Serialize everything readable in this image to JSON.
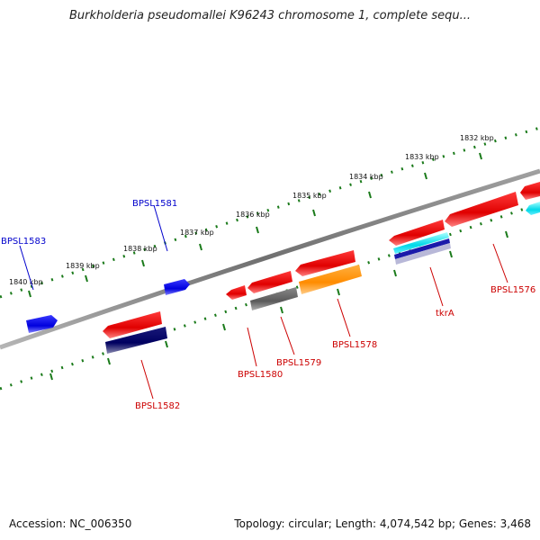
{
  "header": {
    "title": "Burkholderia pseudomallei K96243 chromosome 1, complete sequ..."
  },
  "footer": {
    "accession": "Accession: NC_006350",
    "summary": "Topology: circular; Length: 4,074,542 bp; Genes: 3,468"
  },
  "scale": {
    "unit": "kbp",
    "ticks": [
      {
        "label": "1832 kbp"
      },
      {
        "label": "1833 kbp"
      },
      {
        "label": "1834 kbp"
      },
      {
        "label": "1835 kbp"
      },
      {
        "label": "1836 kbp"
      },
      {
        "label": "1837 kbp"
      },
      {
        "label": "1838 kbp"
      },
      {
        "label": "1839 kbp"
      },
      {
        "label": "1840 kbp"
      }
    ]
  },
  "genes": [
    {
      "name": "BPSL1583",
      "strand": "forward",
      "color": "#0000ee"
    },
    {
      "name": "BPSL1581",
      "strand": "forward",
      "color": "#0000ee"
    },
    {
      "name": "BPSL1582",
      "strand": "reverse",
      "color": "#cc0000"
    },
    {
      "name": "BPSL1580",
      "strand": "reverse",
      "color": "#cc0000"
    },
    {
      "name": "BPSL1579",
      "strand": "reverse",
      "color": "#cc0000"
    },
    {
      "name": "BPSL1578",
      "strand": "reverse",
      "color": "#cc0000"
    },
    {
      "name": "tkrA",
      "strand": "reverse",
      "color": "#cc0000"
    },
    {
      "name": "BPSL1576",
      "strand": "reverse",
      "color": "#cc0000"
    }
  ],
  "colors": {
    "backbone": "#808080",
    "tick_dots": "#1a7a1a",
    "forward_label": "#0000cc",
    "reverse_label": "#cc0000"
  }
}
